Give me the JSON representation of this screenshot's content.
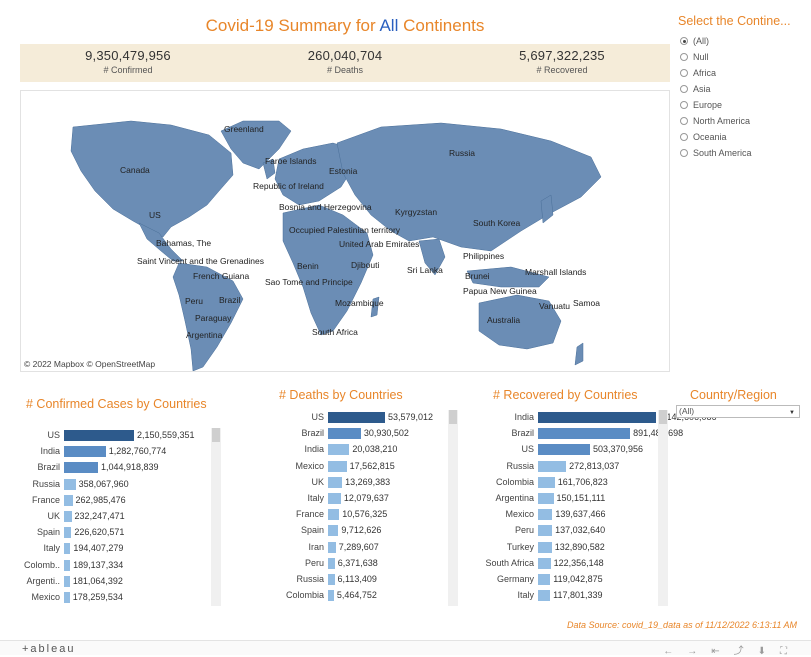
{
  "header": {
    "title_prefix": "Covid-19 Summary for ",
    "title_highlight": "All",
    "title_suffix": " Continents"
  },
  "kpis": [
    {
      "value": "9,350,479,956",
      "label": "# Confirmed"
    },
    {
      "value": "260,040,704",
      "label": "# Deaths"
    },
    {
      "value": "5,697,322,235",
      "label": "# Recovered"
    }
  ],
  "map": {
    "attribution": "© 2022 Mapbox © OpenStreetMap",
    "land_color": "#6b8db5",
    "labels": [
      "Greenland",
      "Faroe Islands",
      "Estonia",
      "Russia",
      "Canada",
      "Republic of Ireland",
      "US",
      "Bosnia and Herzegovina",
      "Kyrgyzstan",
      "South Korea",
      "Occupied Palestinian territory",
      "Bahamas, The",
      "United Arab Emirates",
      "Saint Vincent and the Grenadines",
      "Philippines",
      "Benin",
      "Djibouti",
      "Sri Lanka",
      "Marshall Islands",
      "French Guiana",
      "Brunei",
      "Sao Tome and Principe",
      "Papua New Guinea",
      "Peru",
      "Brazil",
      "Vanuatu",
      "Samoa",
      "Paraguay",
      "Mozambique",
      "Argentina",
      "Australia",
      "South Africa"
    ]
  },
  "continent_filter": {
    "title": "Select the Contine...",
    "options": [
      "(All)",
      "Null",
      "Africa",
      "Asia",
      "Europe",
      "North America",
      "Oceania",
      "South America"
    ],
    "selected": "(All)"
  },
  "country_filter": {
    "title": "Country/Region",
    "selected": "(All)"
  },
  "colors": {
    "dark": "#2d5a8c",
    "mid": "#5a8cc4",
    "light": "#93bde3"
  },
  "chart_data": [
    {
      "type": "bar",
      "title": "# Confirmed Cases by Countries",
      "categories": [
        "US",
        "India",
        "Brazil",
        "Russia",
        "France",
        "UK",
        "Spain",
        "Italy",
        "Colomb..",
        "Argenti..",
        "Mexico"
      ],
      "values": [
        2150559351,
        1282760774,
        1044918839,
        358067960,
        262985476,
        232247471,
        226620571,
        194407279,
        189137334,
        181064392,
        178259534
      ],
      "labels": [
        "2,150,559,351",
        "1,282,760,774",
        "1,044,918,839",
        "358,067,960",
        "262,985,476",
        "232,247,471",
        "226,620,571",
        "194,407,279",
        "189,137,334",
        "181,064,392",
        "178,259,534"
      ]
    },
    {
      "type": "bar",
      "title": "# Deaths by Countries",
      "categories": [
        "US",
        "Brazil",
        "India",
        "Mexico",
        "UK",
        "Italy",
        "France",
        "Spain",
        "Iran",
        "Peru",
        "Russia",
        "Colombia"
      ],
      "values": [
        53579012,
        30930502,
        20038210,
        17562815,
        13269383,
        12079637,
        10576325,
        9712626,
        7289607,
        6371638,
        6113409,
        5464752
      ],
      "labels": [
        "53,579,012",
        "30,930,502",
        "20,038,210",
        "17,562,815",
        "13,269,383",
        "12,079,637",
        "10,576,325",
        "9,712,626",
        "7,289,607",
        "6,371,638",
        "6,113,409",
        "5,464,752"
      ]
    },
    {
      "type": "bar",
      "title": "# Recovered by Countries",
      "categories": [
        "India",
        "Brazil",
        "US",
        "Russia",
        "Colombia",
        "Argentina",
        "Mexico",
        "Peru",
        "Turkey",
        "South Africa",
        "Germany",
        "Italy"
      ],
      "values": [
        1142606086,
        891483698,
        503370956,
        272813037,
        161706823,
        150151111,
        139637466,
        137032640,
        132890582,
        122356148,
        119042875,
        117801339
      ],
      "labels": [
        "1,142,606,086",
        "891,483,698",
        "503,370,956",
        "272,813,037",
        "161,706,823",
        "150,151,111",
        "139,637,466",
        "137,032,640",
        "132,890,582",
        "122,356,148",
        "119,042,875",
        "117,801,339"
      ]
    }
  ],
  "source": "Data Source: covid_19_data as of 11/12/2022 6:13:11 AM",
  "footer": {
    "logo": "+ableau",
    "icons": [
      "undo-icon",
      "redo-icon",
      "revert-icon",
      "pause-icon",
      "share-icon",
      "download-icon",
      "fullscreen-icon"
    ]
  }
}
